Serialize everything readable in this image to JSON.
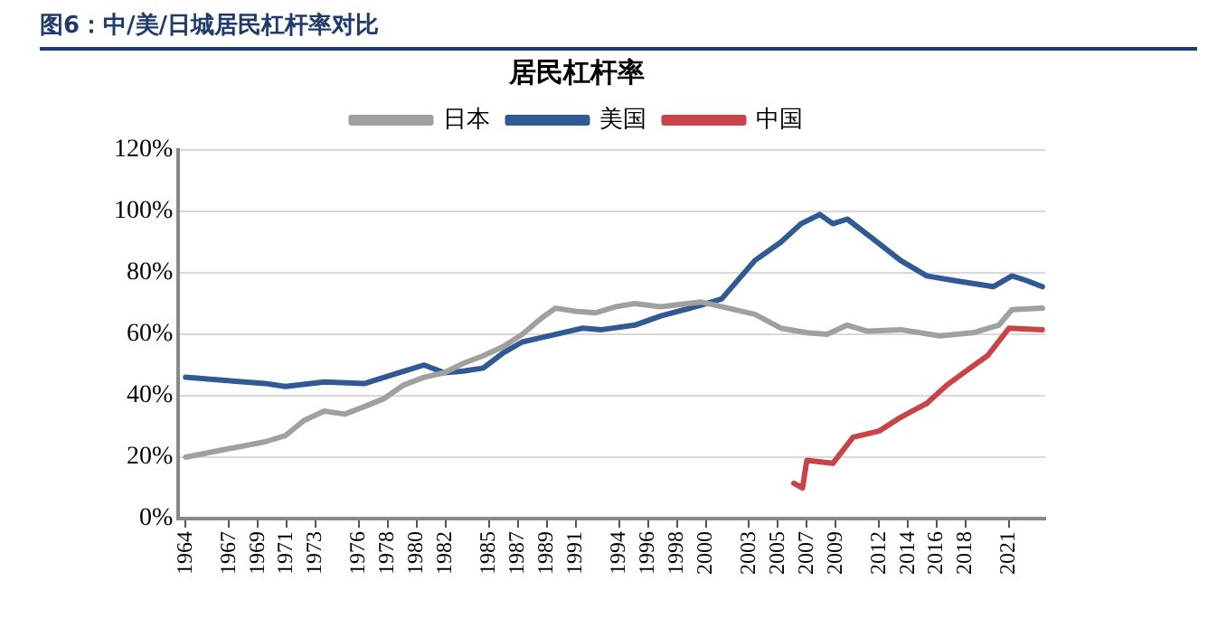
{
  "chart_data": {
    "type": "line",
    "title": "图6：中/美/日城居民杠杆率对比",
    "subtitle": "居民杠杆率",
    "xlim": [
      1963.5,
      2023.5
    ],
    "xticks": [
      1964,
      1967,
      1969,
      1971,
      1973,
      1976,
      1978,
      1980,
      1982,
      1985,
      1987,
      1989,
      1991,
      1994,
      1996,
      1998,
      2000,
      2003,
      2005,
      2007,
      2009,
      2012,
      2014,
      2016,
      2018,
      2021
    ],
    "ylim": [
      0,
      120
    ],
    "yticks": [
      {
        "value": 0,
        "label": "0%"
      },
      {
        "value": 20,
        "label": "20%"
      },
      {
        "value": 40,
        "label": "40%"
      },
      {
        "value": 60,
        "label": "60%"
      },
      {
        "value": 80,
        "label": "80%"
      },
      {
        "value": 100,
        "label": "100%"
      },
      {
        "value": 120,
        "label": "120%"
      }
    ],
    "grid": "y",
    "legend": "top",
    "marker": "none",
    "line_style": "solid",
    "series": [
      {
        "name": "日本",
        "color": "#a0a0a0",
        "x": [
          1964,
          1966.7,
          1969.5,
          1970.9,
          1972.2,
          1973.6,
          1975,
          1976.4,
          1977.7,
          1979.1,
          1980.5,
          1981.9,
          1983.2,
          1984.6,
          1986,
          1987.3,
          1988.7,
          1989.6,
          1991,
          1992.4,
          1993.8,
          1995.1,
          1996.9,
          1999.7,
          2001.1,
          2003.4,
          2005.2,
          2007,
          2008.4,
          2009.8,
          2011.2,
          2013.5,
          2016.2,
          2018.5,
          2020.3,
          2021.2,
          2023.3
        ],
        "values": [
          20,
          22.5,
          25,
          27,
          32,
          35,
          34,
          36.5,
          39,
          43.5,
          46,
          47.5,
          50.5,
          53,
          56,
          60,
          65.5,
          68.5,
          67.5,
          67,
          69,
          70,
          69,
          70.5,
          69,
          66.5,
          62,
          60.5,
          60,
          63,
          61,
          61.5,
          59.5,
          60.5,
          63,
          68,
          68.5
        ]
      },
      {
        "name": "美国",
        "color": "#2f5a93",
        "x": [
          1964,
          1966.7,
          1969.5,
          1970.9,
          1973.6,
          1976.4,
          1979.1,
          1980.5,
          1981.9,
          1983.2,
          1984.6,
          1986,
          1987.3,
          1988.7,
          1991.5,
          1992.8,
          1995.1,
          1996.9,
          1999.7,
          2001.1,
          2003.4,
          2005.2,
          2006.6,
          2007.9,
          2008.8,
          2009.8,
          2011.6,
          2013.5,
          2015.3,
          2017.2,
          2019.9,
          2021.2,
          2022.2,
          2023.3
        ],
        "values": [
          46,
          45,
          44,
          43,
          44.5,
          44,
          48,
          50,
          47.5,
          48,
          49,
          54,
          57.5,
          59,
          62,
          61.5,
          63,
          66,
          69.5,
          71.5,
          84,
          90,
          96,
          99,
          96,
          97.5,
          91,
          84,
          79,
          77.5,
          75.5,
          79,
          77.5,
          75.5
        ]
      },
      {
        "name": "中国",
        "color": "#c8434a",
        "x": [
          2006.1,
          2006.7,
          2007,
          2008.8,
          2010.2,
          2012,
          2013.5,
          2015.3,
          2016.7,
          2018,
          2019.5,
          2021,
          2023.3
        ],
        "values": [
          11.5,
          10,
          19,
          18,
          26.5,
          28.5,
          33,
          37.5,
          43.5,
          48,
          53,
          62,
          61.5
        ]
      }
    ]
  }
}
